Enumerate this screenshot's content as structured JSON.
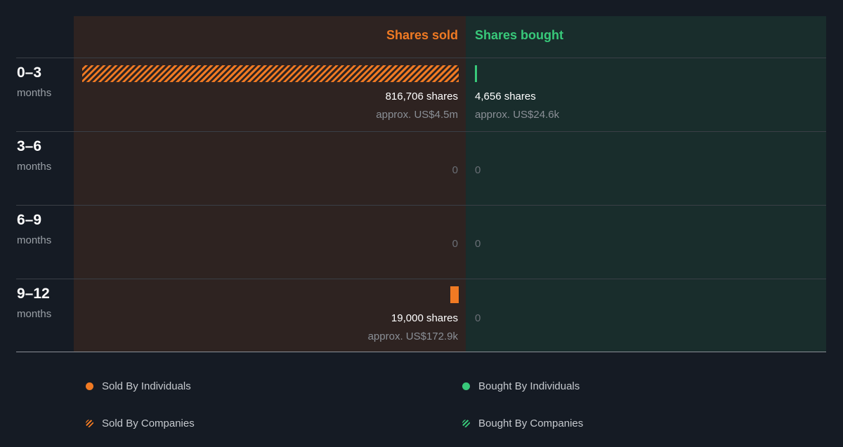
{
  "chart_data": {
    "type": "bar",
    "headers": {
      "sold": "Shares sold",
      "bought": "Shares bought"
    },
    "categories": [
      {
        "range": "0–3",
        "unit": "months"
      },
      {
        "range": "3–6",
        "unit": "months"
      },
      {
        "range": "6–9",
        "unit": "months"
      },
      {
        "range": "9–12",
        "unit": "months"
      }
    ],
    "series": [
      {
        "name": "Shares sold",
        "values": [
          816706,
          0,
          0,
          19000
        ],
        "labels": [
          "816,706 shares",
          "0",
          "0",
          "19,000 shares"
        ],
        "approx": [
          "approx. US$4.5m",
          "",
          "",
          "approx. US$172.9k"
        ],
        "by": [
          "companies",
          null,
          null,
          "individuals"
        ]
      },
      {
        "name": "Shares bought",
        "values": [
          4656,
          0,
          0,
          0
        ],
        "labels": [
          "4,656 shares",
          "0",
          "0",
          "0"
        ],
        "approx": [
          "approx. US$24.6k",
          "",
          "",
          ""
        ],
        "by": [
          "individuals",
          null,
          null,
          null
        ]
      }
    ],
    "legend": [
      {
        "label": "Sold By Individuals",
        "color": "#f07a23",
        "style": "solid"
      },
      {
        "label": "Bought By Individuals",
        "color": "#38c97a",
        "style": "solid"
      },
      {
        "label": "Sold By Companies",
        "color": "#f07a23",
        "style": "hatched"
      },
      {
        "label": "Bought By Companies",
        "color": "#38c97a",
        "style": "hatched"
      }
    ],
    "colors": {
      "sold": "#f07a23",
      "bought": "#38c97a"
    }
  }
}
